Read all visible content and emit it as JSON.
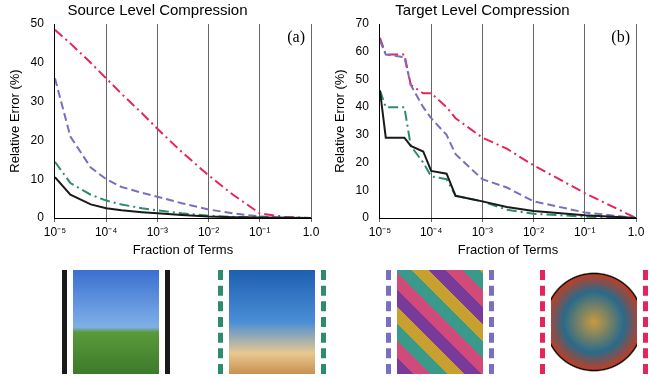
{
  "chart_data": [
    {
      "type": "line",
      "title": "Source Level Compression",
      "annotation": "(a)",
      "x_label": "Fraction of Terms",
      "y_label": "Relative Error (%)",
      "log": "x",
      "grid": true,
      "xlim": [
        1e-05,
        1
      ],
      "xticks": [
        {
          "value": 1e-05,
          "label": "10⁻⁵"
        },
        {
          "value": 0.0001,
          "label": "10⁻⁴"
        },
        {
          "value": 0.001,
          "label": "10⁻³"
        },
        {
          "value": 0.01,
          "label": "10⁻²"
        },
        {
          "value": 0.1,
          "label": "10⁻¹"
        },
        {
          "value": 1,
          "label": "1.0"
        }
      ],
      "ylim": [
        0,
        50
      ],
      "yticks": [
        0,
        10,
        20,
        30,
        40,
        50
      ],
      "x": [
        1e-05,
        2e-05,
        5e-05,
        0.0001,
        0.0002,
        0.0005,
        0.001,
        0.003,
        0.01,
        0.03,
        0.1,
        0.3,
        1
      ],
      "series": [
        {
          "color": "#1a1a1a",
          "line_style": "solid",
          "values": [
            10.5,
            6,
            3.5,
            2.5,
            2,
            1.5,
            1.2,
            0.8,
            0.4,
            0.2,
            0.1,
            0.05,
            0
          ]
        },
        {
          "color": "#2e8b6e",
          "line_style": "dashdot",
          "values": [
            14.5,
            9,
            6,
            4.5,
            3.5,
            2.5,
            2,
            1.2,
            0.6,
            0.3,
            0.1,
            0.05,
            0
          ]
        },
        {
          "color": "#7a6ec0",
          "line_style": "dashed",
          "values": [
            36,
            21,
            13,
            10,
            8,
            6.5,
            5.5,
            3.8,
            2.2,
            1.2,
            0.4,
            0.1,
            0
          ]
        },
        {
          "color": "#e6245a",
          "line_style": "dashdot",
          "values": [
            48.5,
            45,
            40,
            36,
            32,
            27,
            23,
            17,
            11,
            6,
            1.2,
            0.3,
            0
          ]
        }
      ]
    },
    {
      "type": "line",
      "title": "Target Level Compression",
      "annotation": "(b)",
      "x_label": "Fraction of Terms",
      "y_label": "Relative Error (%)",
      "log": "x",
      "grid": true,
      "xlim": [
        1e-05,
        1
      ],
      "xticks": [
        {
          "value": 1e-05,
          "label": "10⁻⁵"
        },
        {
          "value": 0.0001,
          "label": "10⁻⁴"
        },
        {
          "value": 0.001,
          "label": "10⁻³"
        },
        {
          "value": 0.01,
          "label": "10⁻²"
        },
        {
          "value": 0.1,
          "label": "10⁻¹"
        },
        {
          "value": 1,
          "label": "1.0"
        }
      ],
      "ylim": [
        0,
        70
      ],
      "yticks": [
        0,
        10,
        20,
        30,
        40,
        50,
        60,
        70
      ],
      "x": [
        1e-05,
        1.3e-05,
        3e-05,
        4e-05,
        7e-05,
        0.0001,
        0.0002,
        0.0003,
        0.001,
        0.003,
        0.01,
        0.1,
        1
      ],
      "series": [
        {
          "color": "#1a1a1a",
          "line_style": "solid",
          "values": [
            46,
            29,
            29,
            26,
            24,
            17,
            16,
            8,
            6,
            4,
            2.5,
            1,
            0
          ]
        },
        {
          "color": "#2e8b6e",
          "line_style": "dashdot",
          "values": [
            46,
            40,
            40,
            26,
            20,
            15,
            14,
            8,
            6,
            3,
            1.5,
            0.5,
            0
          ]
        },
        {
          "color": "#7a6ec0",
          "line_style": "dashed",
          "values": [
            64,
            59,
            58,
            48,
            40,
            36,
            30,
            23,
            14,
            11,
            6,
            2,
            0
          ]
        },
        {
          "color": "#e6245a",
          "line_style": "dashdot",
          "values": [
            65,
            59,
            59,
            48,
            45,
            45,
            40,
            36,
            29,
            25,
            19,
            9,
            0
          ]
        }
      ]
    }
  ]
}
